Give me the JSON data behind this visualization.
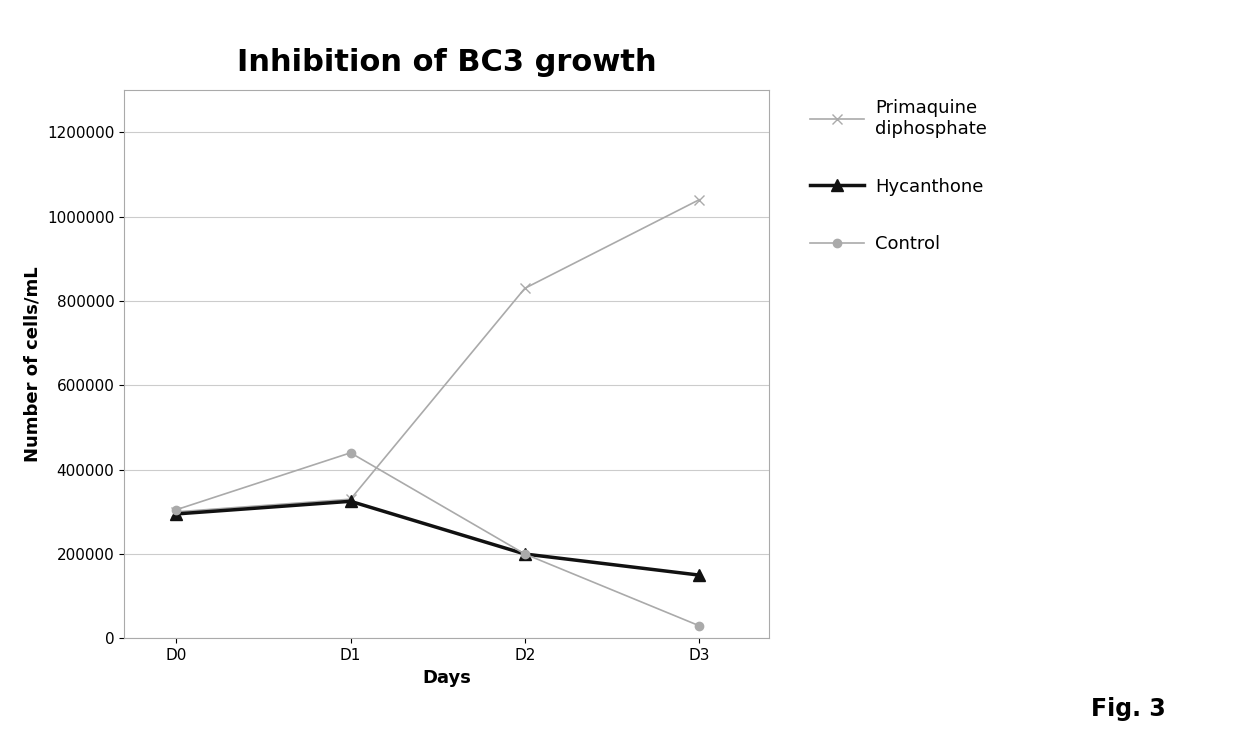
{
  "title": "Inhibition of BC3 growth",
  "xlabel": "Days",
  "ylabel": "Number of cells/mL",
  "x_labels": [
    "D0",
    "D1",
    "D2",
    "D3"
  ],
  "x_values": [
    0,
    1,
    2,
    3
  ],
  "series": [
    {
      "label": "Primaquine\ndiphosphate",
      "values": [
        300000,
        330000,
        830000,
        1040000
      ],
      "color": "#aaaaaa",
      "marker": "x",
      "linewidth": 1.2,
      "markersize": 7,
      "linestyle": "-"
    },
    {
      "label": "Hycanthone",
      "values": [
        295000,
        325000,
        200000,
        150000
      ],
      "color": "#111111",
      "marker": "^",
      "linewidth": 2.5,
      "markersize": 8,
      "linestyle": "-"
    },
    {
      "label": "Control",
      "values": [
        305000,
        440000,
        200000,
        30000
      ],
      "color": "#aaaaaa",
      "marker": "o",
      "linewidth": 1.2,
      "markersize": 6,
      "linestyle": "-"
    }
  ],
  "ylim": [
    0,
    1300000
  ],
  "yticks": [
    0,
    200000,
    400000,
    600000,
    800000,
    1000000,
    1200000
  ],
  "background_color": "#ffffff",
  "fig_annotation": "Fig. 3",
  "title_fontsize": 22,
  "axis_label_fontsize": 13,
  "tick_fontsize": 11,
  "legend_fontsize": 13
}
